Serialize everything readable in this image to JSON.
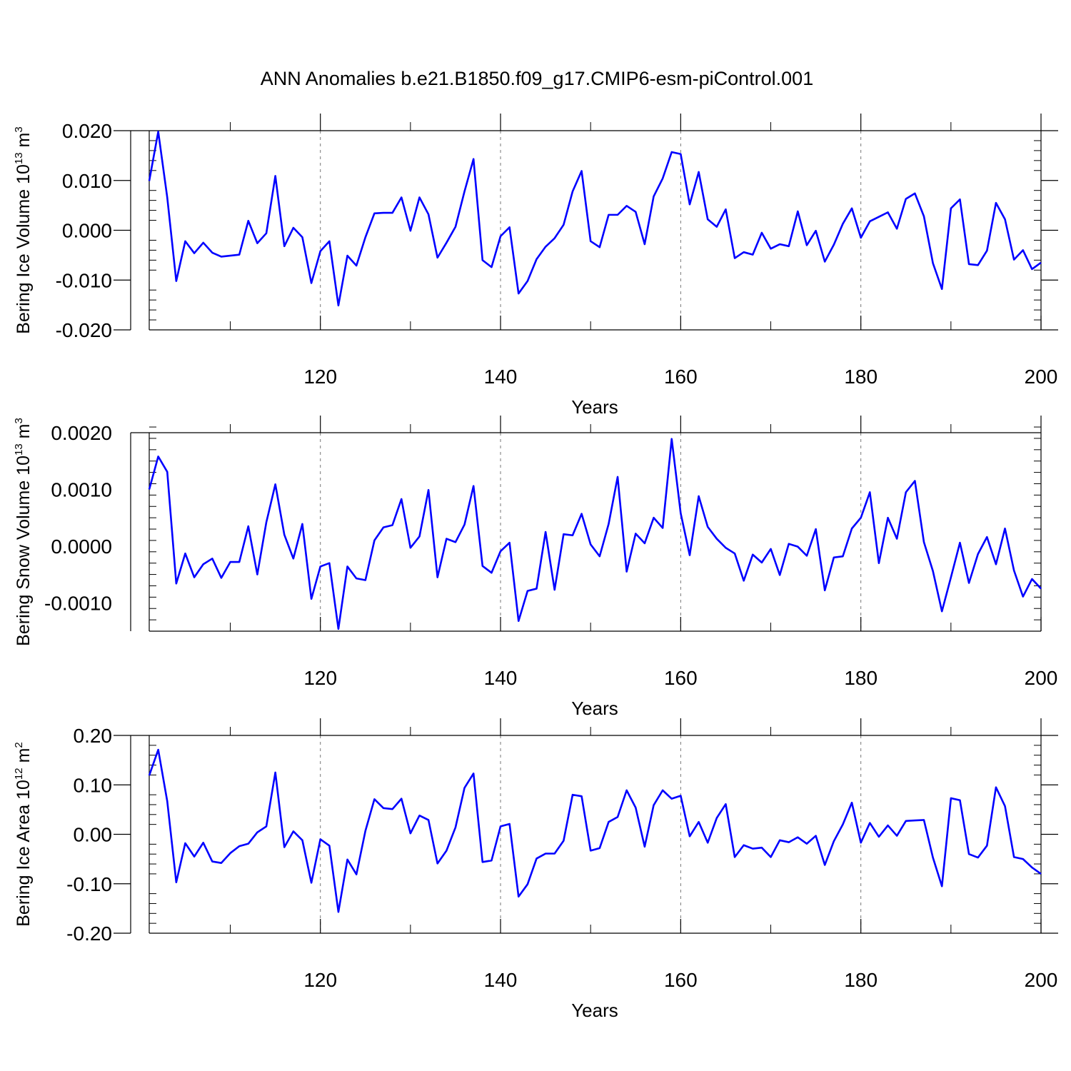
{
  "figure": {
    "title": "ANN Anomalies b.e21.B1850.f09_g17.CMIP6-esm-piControl.001",
    "line_color": "#0000ff"
  },
  "chart_data": [
    {
      "type": "line",
      "ylabel_main": "Bering Ice Volume 10",
      "ylabel_exp": "13",
      "ylabel_unit": "m",
      "ylabel_unit_exp": "3",
      "xlabel": "Years",
      "xlim": [
        101,
        200
      ],
      "ylim": [
        -0.02,
        0.02
      ],
      "xticks": [
        120,
        140,
        160,
        180,
        200
      ],
      "xtick_labels": [
        "120",
        "140",
        "160",
        "180",
        "200"
      ],
      "yticks": [
        -0.02,
        -0.01,
        0.0,
        0.01,
        0.02
      ],
      "ytick_labels": [
        "-0.020",
        "-0.010",
        "0.000",
        "0.010",
        "0.020"
      ],
      "ymin_step": 0.002,
      "grid_x": [
        120,
        140,
        160,
        180
      ],
      "x_start": 101,
      "values": [
        0.0099,
        0.0198,
        0.0066,
        -0.0102,
        -0.0022,
        -0.0046,
        -0.0025,
        -0.0045,
        -0.0053,
        -0.0051,
        -0.0049,
        0.0019,
        -0.0026,
        -0.0006,
        0.0109,
        -0.0032,
        0.0005,
        -0.0014,
        -0.0106,
        -0.0042,
        -0.0022,
        -0.0151,
        -0.0051,
        -0.0071,
        -0.0014,
        0.0034,
        0.0035,
        0.0035,
        0.0066,
        -0.0001,
        0.0066,
        0.0032,
        -0.0055,
        -0.0025,
        0.0007,
        0.0078,
        0.0143,
        -0.006,
        -0.0074,
        -0.0012,
        0.0006,
        -0.0127,
        -0.0102,
        -0.0058,
        -0.0033,
        -0.0016,
        0.0011,
        0.0078,
        0.0119,
        -0.0022,
        -0.0034,
        0.0031,
        0.0031,
        0.0049,
        0.0037,
        -0.0028,
        0.0068,
        0.0104,
        0.0157,
        0.0153,
        0.0052,
        0.0117,
        0.0022,
        0.0007,
        0.0042,
        -0.0056,
        -0.0044,
        -0.0049,
        -0.0005,
        -0.0037,
        -0.0028,
        -0.0032,
        0.0038,
        -0.003,
        -0.0001,
        -0.0063,
        -0.0029,
        0.0013,
        0.0044,
        -0.0015,
        0.0018,
        0.0027,
        0.0036,
        0.0003,
        0.0063,
        0.0074,
        0.0028,
        -0.0066,
        -0.0118,
        0.0044,
        0.0062,
        -0.0068,
        -0.007,
        -0.0041,
        0.0055,
        0.0022,
        -0.0059,
        -0.004,
        -0.0078,
        -0.0065
      ]
    },
    {
      "type": "line",
      "ylabel_main": "Bering Snow Volume 10",
      "ylabel_exp": "13",
      "ylabel_unit": "m",
      "ylabel_unit_exp": "3",
      "xlabel": "Years",
      "xlim": [
        101,
        200
      ],
      "ylim": [
        -0.0015,
        0.002
      ],
      "xticks": [
        120,
        140,
        160,
        180,
        200
      ],
      "xtick_labels": [
        "120",
        "140",
        "160",
        "180",
        "200"
      ],
      "yticks": [
        -0.001,
        0.0,
        0.001,
        0.002
      ],
      "ytick_labels": [
        "-0.0010",
        "0.0000",
        "0.0010",
        "0.0020"
      ],
      "ymin_step": 0.0002,
      "grid_x": [
        120,
        140,
        160,
        180
      ],
      "x_start": 101,
      "values": [
        0.001,
        0.00158,
        0.00131,
        -0.00066,
        -0.00013,
        -0.00055,
        -0.00032,
        -0.00022,
        -0.00056,
        -0.00028,
        -0.00028,
        0.00035,
        -0.0005,
        0.00042,
        0.00109,
        0.0002,
        -0.00022,
        0.00039,
        -0.00093,
        -0.00036,
        -0.0003,
        -0.00146,
        -0.00036,
        -0.00057,
        -0.0006,
        0.0001,
        0.00033,
        0.00037,
        0.00083,
        -3e-05,
        0.00017,
        0.00099,
        -0.00055,
        0.00013,
        7e-05,
        0.00038,
        0.00106,
        -0.00035,
        -0.00047,
        -9e-05,
        6e-05,
        -0.00132,
        -0.00079,
        -0.00075,
        0.00025,
        -0.00077,
        0.00021,
        0.00019,
        0.00057,
        3e-05,
        -0.00018,
        0.00039,
        0.00122,
        -0.00045,
        0.00022,
        5e-05,
        0.0005,
        0.00032,
        0.00189,
        0.00058,
        -0.00016,
        0.00088,
        0.00034,
        0.00013,
        -3e-05,
        -0.00013,
        -0.00061,
        -0.00015,
        -0.00029,
        -5e-05,
        -0.00051,
        4e-05,
        -1e-05,
        -0.00017,
        0.0003,
        -0.00078,
        -0.0002,
        -0.00018,
        0.00031,
        0.0005,
        0.00095,
        -0.0003,
        0.0005,
        0.00013,
        0.00095,
        0.00115,
        7e-05,
        -0.00044,
        -0.00115,
        -0.00055,
        6e-05,
        -0.00065,
        -0.00014,
        0.00016,
        -0.00032,
        0.00031,
        -0.00043,
        -0.00089,
        -0.00058,
        -0.00075
      ]
    },
    {
      "type": "line",
      "ylabel_main": "Bering Ice Area 10",
      "ylabel_exp": "12",
      "ylabel_unit": "m",
      "ylabel_unit_exp": "2",
      "xlabel": "Years",
      "xlim": [
        101,
        200
      ],
      "ylim": [
        -0.2,
        0.2
      ],
      "xticks": [
        120,
        140,
        160,
        180,
        200
      ],
      "xtick_labels": [
        "120",
        "140",
        "160",
        "180",
        "200"
      ],
      "yticks": [
        -0.2,
        -0.1,
        0.0,
        0.1,
        0.2
      ],
      "ytick_labels": [
        "-0.20",
        "-0.10",
        "0.00",
        "0.10",
        "0.20"
      ],
      "ymin_step": 0.02,
      "grid_x": [
        120,
        140,
        160,
        180
      ],
      "x_start": 101,
      "values": [
        0.119,
        0.171,
        0.067,
        -0.097,
        -0.018,
        -0.045,
        -0.017,
        -0.055,
        -0.058,
        -0.038,
        -0.024,
        -0.019,
        0.004,
        0.016,
        0.125,
        -0.026,
        0.006,
        -0.012,
        -0.098,
        -0.01,
        -0.023,
        -0.157,
        -0.051,
        -0.081,
        0.007,
        0.071,
        0.053,
        0.051,
        0.072,
        0.002,
        0.038,
        0.029,
        -0.059,
        -0.033,
        0.014,
        0.094,
        0.123,
        -0.056,
        -0.053,
        0.016,
        0.021,
        -0.126,
        -0.101,
        -0.049,
        -0.039,
        -0.039,
        -0.013,
        0.08,
        0.077,
        -0.033,
        -0.028,
        0.025,
        0.035,
        0.089,
        0.054,
        -0.025,
        0.059,
        0.089,
        0.072,
        0.078,
        -0.004,
        0.025,
        -0.017,
        0.033,
        0.061,
        -0.046,
        -0.022,
        -0.029,
        -0.027,
        -0.046,
        -0.012,
        -0.016,
        -0.006,
        -0.019,
        -0.003,
        -0.062,
        -0.014,
        0.02,
        0.064,
        -0.017,
        0.023,
        -0.005,
        0.018,
        -0.003,
        0.027,
        0.028,
        0.029,
        -0.047,
        -0.105,
        0.073,
        0.069,
        -0.04,
        -0.047,
        -0.023,
        0.095,
        0.057,
        -0.046,
        -0.05,
        -0.067,
        -0.08
      ]
    }
  ]
}
